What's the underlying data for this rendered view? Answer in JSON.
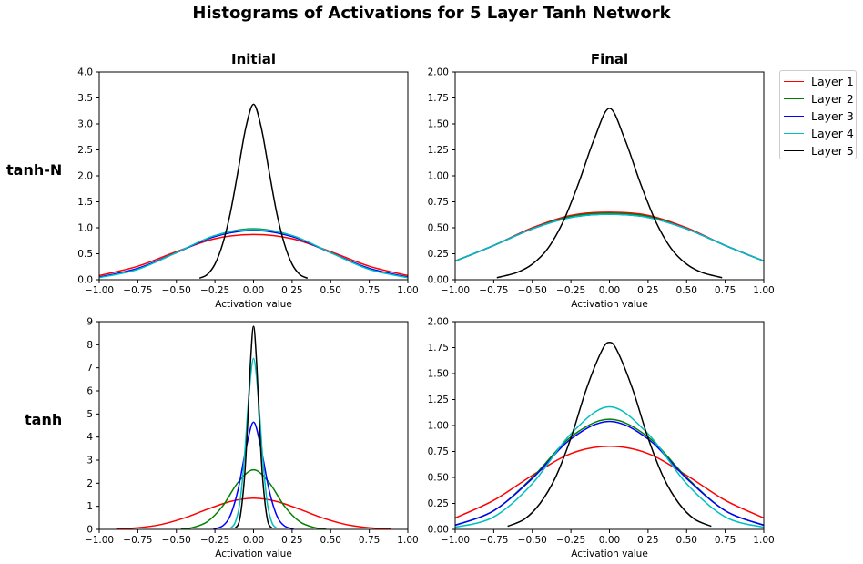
{
  "figure": {
    "title": "Histograms of Activations for 5 Layer Tanh Network",
    "columns": [
      "Initial",
      "Final"
    ],
    "rows": [
      "tanh-N",
      "tanh"
    ]
  },
  "legend": {
    "placement": "outside-right",
    "entries": [
      {
        "label": "Layer 1",
        "color": "#ff0000"
      },
      {
        "label": "Layer 2",
        "color": "#008000"
      },
      {
        "label": "Layer 3",
        "color": "#0000ff"
      },
      {
        "label": "Layer 4",
        "color": "#00bfbf"
      },
      {
        "label": "Layer 5",
        "color": "#000000"
      }
    ]
  },
  "chart_data": [
    {
      "type": "line",
      "row": "tanh-N",
      "column": "Initial",
      "xlabel": "Activation value",
      "xlim": [
        -1.0,
        1.0
      ],
      "ylim": [
        0,
        4.0
      ],
      "xticks": [
        "-1.00",
        "-0.75",
        "-0.50",
        "-0.25",
        "0.00",
        "0.25",
        "0.50",
        "0.75",
        "1.00"
      ],
      "yticks": [
        "0.0",
        "0.5",
        "1.0",
        "1.5",
        "2.0",
        "2.5",
        "3.0",
        "3.5",
        "4.0"
      ],
      "grid": false,
      "series": [
        {
          "name": "Layer 1",
          "color": "#ff0000",
          "x": [
            -1.0,
            -0.75,
            -0.5,
            -0.25,
            0.0,
            0.25,
            0.5,
            0.75,
            1.0
          ],
          "y": [
            0.08,
            0.26,
            0.54,
            0.79,
            0.87,
            0.79,
            0.54,
            0.26,
            0.08
          ]
        },
        {
          "name": "Layer 2",
          "color": "#008000",
          "x": [
            -1.0,
            -0.75,
            -0.5,
            -0.25,
            0.0,
            0.25,
            0.5,
            0.75,
            1.0
          ],
          "y": [
            0.05,
            0.21,
            0.52,
            0.85,
            0.98,
            0.85,
            0.52,
            0.21,
            0.05
          ]
        },
        {
          "name": "Layer 3",
          "color": "#0000ff",
          "x": [
            -1.0,
            -0.75,
            -0.5,
            -0.25,
            0.0,
            0.25,
            0.5,
            0.75,
            1.0
          ],
          "y": [
            0.05,
            0.22,
            0.52,
            0.83,
            0.95,
            0.83,
            0.52,
            0.22,
            0.05
          ]
        },
        {
          "name": "Layer 4",
          "color": "#00bfbf",
          "x": [
            -1.0,
            -0.75,
            -0.5,
            -0.25,
            0.0,
            0.25,
            0.5,
            0.75,
            1.0
          ],
          "y": [
            0.04,
            0.2,
            0.52,
            0.85,
            0.97,
            0.85,
            0.52,
            0.2,
            0.04
          ]
        },
        {
          "name": "Layer 5",
          "color": "#000000",
          "x": [
            -0.35,
            -0.3,
            -0.25,
            -0.2,
            -0.15,
            -0.1,
            -0.05,
            0.0,
            0.05,
            0.1,
            0.15,
            0.2,
            0.25,
            0.3,
            0.35
          ],
          "y": [
            0.03,
            0.1,
            0.3,
            0.69,
            1.29,
            2.1,
            2.93,
            3.38,
            2.93,
            2.1,
            1.29,
            0.69,
            0.3,
            0.1,
            0.03
          ]
        }
      ]
    },
    {
      "type": "line",
      "row": "tanh-N",
      "column": "Final",
      "xlabel": "Activation value",
      "xlim": [
        -1.0,
        1.0
      ],
      "ylim": [
        0,
        2.0
      ],
      "xticks": [
        "-1.00",
        "-0.75",
        "-0.50",
        "-0.25",
        "0.00",
        "0.25",
        "0.50",
        "0.75",
        "1.00"
      ],
      "yticks": [
        "0.00",
        "0.25",
        "0.50",
        "0.75",
        "1.00",
        "1.25",
        "1.50",
        "1.75",
        "2.00"
      ],
      "grid": false,
      "series": [
        {
          "name": "Layer 1",
          "color": "#ff0000",
          "x": [
            -1.0,
            -0.75,
            -0.5,
            -0.25,
            0.0,
            0.25,
            0.5,
            0.75,
            1.0
          ],
          "y": [
            0.18,
            0.33,
            0.5,
            0.62,
            0.65,
            0.62,
            0.5,
            0.33,
            0.18
          ]
        },
        {
          "name": "Layer 2",
          "color": "#008000",
          "x": [
            -1.0,
            -0.75,
            -0.5,
            -0.25,
            0.0,
            0.25,
            0.5,
            0.75,
            1.0
          ],
          "y": [
            0.18,
            0.33,
            0.49,
            0.61,
            0.64,
            0.61,
            0.49,
            0.33,
            0.18
          ]
        },
        {
          "name": "Layer 3",
          "color": "#0000ff",
          "x": [
            -1.0,
            -0.75,
            -0.5,
            -0.25,
            0.0,
            0.25,
            0.5,
            0.75,
            1.0
          ],
          "y": [
            0.18,
            0.33,
            0.49,
            0.6,
            0.63,
            0.6,
            0.49,
            0.33,
            0.18
          ]
        },
        {
          "name": "Layer 4",
          "color": "#00bfbf",
          "x": [
            -1.0,
            -0.75,
            -0.5,
            -0.25,
            0.0,
            0.25,
            0.5,
            0.75,
            1.0
          ],
          "y": [
            0.18,
            0.33,
            0.49,
            0.6,
            0.63,
            0.6,
            0.49,
            0.33,
            0.18
          ]
        },
        {
          "name": "Layer 5",
          "color": "#000000",
          "x": [
            -0.73,
            -0.6,
            -0.5,
            -0.4,
            -0.3,
            -0.2,
            -0.1,
            0.0,
            0.1,
            0.2,
            0.3,
            0.4,
            0.5,
            0.6,
            0.73
          ],
          "y": [
            0.02,
            0.07,
            0.15,
            0.3,
            0.56,
            0.93,
            1.35,
            1.65,
            1.35,
            0.93,
            0.56,
            0.3,
            0.15,
            0.07,
            0.02
          ]
        }
      ]
    },
    {
      "type": "line",
      "row": "tanh",
      "column": "Initial",
      "xlabel": "Activation value",
      "xlim": [
        -1.0,
        1.0
      ],
      "ylim": [
        0,
        9
      ],
      "xticks": [
        "-1.00",
        "-0.75",
        "-0.50",
        "-0.25",
        "0.00",
        "0.25",
        "0.50",
        "0.75",
        "1.00"
      ],
      "yticks": [
        "0",
        "1",
        "2",
        "3",
        "4",
        "5",
        "6",
        "7",
        "8",
        "9"
      ],
      "grid": false,
      "series": [
        {
          "name": "Layer 1",
          "color": "#ff0000",
          "x": [
            -0.89,
            -0.75,
            -0.6,
            -0.45,
            -0.3,
            -0.15,
            0.0,
            0.15,
            0.3,
            0.45,
            0.6,
            0.75,
            0.89
          ],
          "y": [
            0.02,
            0.07,
            0.21,
            0.49,
            0.87,
            1.21,
            1.35,
            1.21,
            0.87,
            0.49,
            0.21,
            0.07,
            0.02
          ]
        },
        {
          "name": "Layer 2",
          "color": "#008000",
          "x": [
            -0.47,
            -0.4,
            -0.3,
            -0.2,
            -0.1,
            0.0,
            0.1,
            0.2,
            0.3,
            0.4,
            0.47
          ],
          "y": [
            0.02,
            0.07,
            0.33,
            1.01,
            2.04,
            2.58,
            2.04,
            1.01,
            0.33,
            0.07,
            0.02
          ]
        },
        {
          "name": "Layer 3",
          "color": "#0000ff",
          "x": [
            -0.26,
            -0.2,
            -0.15,
            -0.1,
            -0.05,
            0.0,
            0.05,
            0.1,
            0.15,
            0.2,
            0.26
          ],
          "y": [
            0.02,
            0.15,
            0.61,
            1.73,
            3.46,
            4.65,
            3.46,
            1.73,
            0.61,
            0.15,
            0.02
          ]
        },
        {
          "name": "Layer 4",
          "color": "#00bfbf",
          "x": [
            -0.15,
            -0.12,
            -0.09,
            -0.06,
            -0.03,
            0.0,
            0.03,
            0.06,
            0.09,
            0.12,
            0.15
          ],
          "y": [
            0.05,
            0.28,
            1.1,
            3.05,
            5.8,
            7.4,
            5.8,
            3.05,
            1.1,
            0.28,
            0.05
          ]
        },
        {
          "name": "Layer 5",
          "color": "#000000",
          "x": [
            -0.12,
            -0.09,
            -0.06,
            -0.04,
            -0.02,
            0.0,
            0.02,
            0.04,
            0.06,
            0.09,
            0.12
          ],
          "y": [
            0.05,
            0.42,
            2.13,
            4.35,
            7.2,
            8.8,
            7.2,
            4.35,
            2.13,
            0.42,
            0.05
          ]
        }
      ]
    },
    {
      "type": "line",
      "row": "tanh",
      "column": "Final",
      "xlabel": "Activation value",
      "xlim": [
        -1.0,
        1.0
      ],
      "ylim": [
        0,
        2.0
      ],
      "xticks": [
        "-1.00",
        "-0.75",
        "-0.50",
        "-0.25",
        "0.00",
        "0.25",
        "0.50",
        "0.75",
        "1.00"
      ],
      "yticks": [
        "0.00",
        "0.25",
        "0.50",
        "0.75",
        "1.00",
        "1.25",
        "1.50",
        "1.75",
        "2.00"
      ],
      "grid": false,
      "series": [
        {
          "name": "Layer 1",
          "color": "#ff0000",
          "x": [
            -1.0,
            -0.75,
            -0.5,
            -0.25,
            0.0,
            0.25,
            0.5,
            0.75,
            1.0
          ],
          "y": [
            0.11,
            0.28,
            0.52,
            0.73,
            0.8,
            0.73,
            0.52,
            0.28,
            0.11
          ]
        },
        {
          "name": "Layer 2",
          "color": "#008000",
          "x": [
            -1.0,
            -0.75,
            -0.5,
            -0.25,
            0.0,
            0.25,
            0.5,
            0.75,
            1.0
          ],
          "y": [
            0.04,
            0.18,
            0.5,
            0.89,
            1.06,
            0.89,
            0.5,
            0.18,
            0.04
          ]
        },
        {
          "name": "Layer 3",
          "color": "#0000ff",
          "x": [
            -1.0,
            -0.75,
            -0.5,
            -0.25,
            0.0,
            0.25,
            0.5,
            0.75,
            1.0
          ],
          "y": [
            0.04,
            0.18,
            0.49,
            0.87,
            1.04,
            0.87,
            0.49,
            0.18,
            0.04
          ]
        },
        {
          "name": "Layer 4",
          "color": "#00bfbf",
          "x": [
            -1.0,
            -0.75,
            -0.5,
            -0.25,
            0.0,
            0.25,
            0.5,
            0.75,
            1.0
          ],
          "y": [
            0.02,
            0.12,
            0.44,
            0.92,
            1.18,
            0.92,
            0.44,
            0.12,
            0.02
          ]
        },
        {
          "name": "Layer 5",
          "color": "#000000",
          "x": [
            -0.66,
            -0.55,
            -0.45,
            -0.35,
            -0.25,
            -0.15,
            -0.05,
            0.0,
            0.05,
            0.15,
            0.25,
            0.35,
            0.45,
            0.55,
            0.66
          ],
          "y": [
            0.03,
            0.1,
            0.25,
            0.5,
            0.88,
            1.35,
            1.72,
            1.8,
            1.72,
            1.35,
            0.88,
            0.5,
            0.25,
            0.1,
            0.03
          ]
        }
      ]
    }
  ]
}
